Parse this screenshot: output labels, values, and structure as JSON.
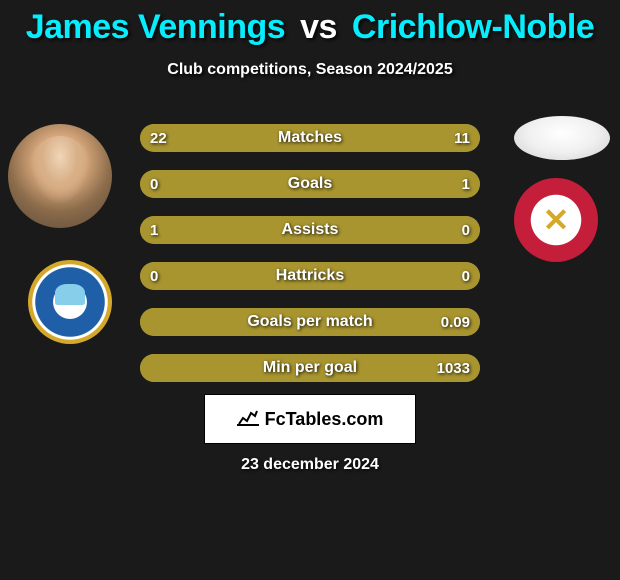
{
  "title": {
    "player1": "James Vennings",
    "vs": "vs",
    "player2": "Crichlow-Noble"
  },
  "subtitle": "Club competitions, Season 2024/2025",
  "colors": {
    "p1_accent": "#06edfd",
    "p2_accent": "#06edfd",
    "bar_p1": "#a89530",
    "bar_p2": "#a89530",
    "bar_neutral": "#a89530",
    "background": "#1a1a1a"
  },
  "stats": [
    {
      "label": "Matches",
      "v1": "22",
      "v2": "11",
      "w1": 66,
      "w2": 34,
      "c1": "#a89530",
      "c2": "#a89530"
    },
    {
      "label": "Goals",
      "v1": "0",
      "v2": "1",
      "w1": 18,
      "w2": 82,
      "c1": "#a89530",
      "c2": "#a89530"
    },
    {
      "label": "Assists",
      "v1": "1",
      "v2": "0",
      "w1": 82,
      "w2": 18,
      "c1": "#a89530",
      "c2": "#a89530"
    },
    {
      "label": "Hattricks",
      "v1": "0",
      "v2": "0",
      "w1": 50,
      "w2": 50,
      "c1": "#a89530",
      "c2": "#a89530"
    },
    {
      "label": "Goals per match",
      "v1": "",
      "v2": "0.09",
      "w1": 0,
      "w2": 100,
      "c1": "#a89530",
      "c2": "#a89530"
    },
    {
      "label": "Min per goal",
      "v1": "",
      "v2": "1033",
      "w1": 0,
      "w2": 100,
      "c1": "#a89530",
      "c2": "#a89530"
    }
  ],
  "footer": {
    "site": "FcTables.com",
    "date": "23 december 2024"
  }
}
